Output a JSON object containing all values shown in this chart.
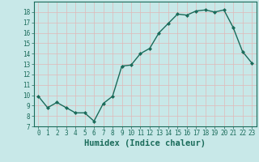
{
  "xlabel": "Humidex (Indice chaleur)",
  "x": [
    0,
    1,
    2,
    3,
    4,
    5,
    6,
    7,
    8,
    9,
    10,
    11,
    12,
    13,
    14,
    15,
    16,
    17,
    18,
    19,
    20,
    21,
    22,
    23
  ],
  "y": [
    9.9,
    8.8,
    9.3,
    8.8,
    8.3,
    8.3,
    7.5,
    9.2,
    9.9,
    12.8,
    12.9,
    14.0,
    14.5,
    16.0,
    16.9,
    17.8,
    17.7,
    18.1,
    18.2,
    18.0,
    18.2,
    16.5,
    14.2,
    13.1
  ],
  "line_color": "#1a6b5a",
  "marker": "D",
  "marker_size": 2.0,
  "bg_color": "#c8e8e8",
  "grid_major_color": "#e8c8c8",
  "grid_minor_color": "#d8d8d8",
  "xlim": [
    -0.5,
    23.5
  ],
  "ylim": [
    7,
    19
  ],
  "yticks": [
    7,
    8,
    9,
    10,
    11,
    12,
    13,
    14,
    15,
    16,
    17,
    18
  ],
  "xticks": [
    0,
    1,
    2,
    3,
    4,
    5,
    6,
    7,
    8,
    9,
    10,
    11,
    12,
    13,
    14,
    15,
    16,
    17,
    18,
    19,
    20,
    21,
    22,
    23
  ],
  "tick_label_fontsize": 5.5,
  "xlabel_fontsize": 7.5,
  "linewidth": 1.0
}
